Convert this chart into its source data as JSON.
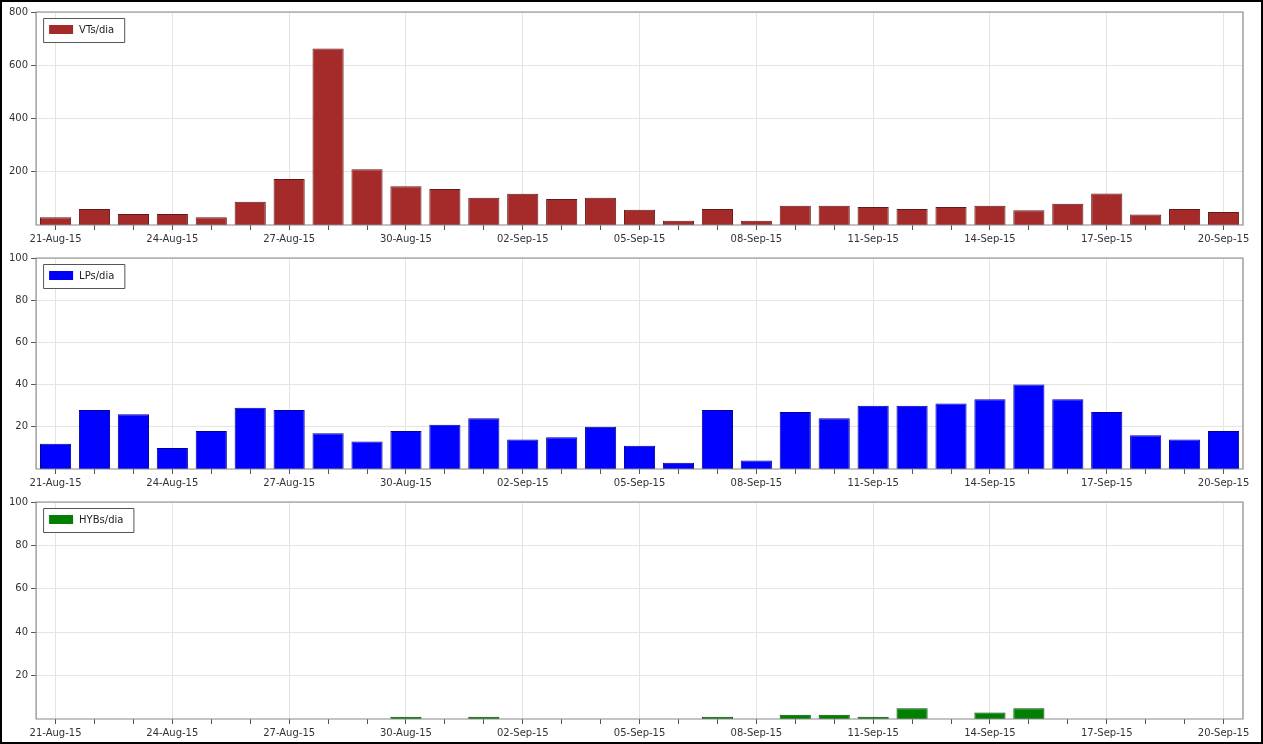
{
  "chart_data": [
    {
      "type": "bar",
      "categories": [
        "21-Aug-15",
        null,
        null,
        "24-Aug-15",
        null,
        null,
        "27-Aug-15",
        null,
        null,
        "30-Aug-15",
        null,
        null,
        "02-Sep-15",
        null,
        null,
        "05-Sep-15",
        null,
        null,
        "08-Sep-15",
        null,
        null,
        "11-Sep-15",
        null,
        null,
        "14-Sep-15",
        null,
        null,
        "17-Sep-15",
        null,
        null,
        "20-Sep-15"
      ],
      "series": [
        {
          "name": "VTs/dia",
          "color": "#a52a2a",
          "values": [
            29,
            60,
            41,
            41,
            29,
            87,
            173,
            663,
            209,
            146,
            135,
            102,
            117,
            98,
            102,
            57,
            16,
            60,
            16,
            72,
            72,
            68,
            60,
            68,
            72,
            55,
            80,
            118,
            39,
            60,
            49
          ]
        }
      ],
      "ylim": [
        0,
        800
      ],
      "yticks": [
        200,
        400,
        600,
        800
      ],
      "grid": true,
      "legend": "top left"
    },
    {
      "type": "bar",
      "categories": [
        "21-Aug-15",
        null,
        null,
        "24-Aug-15",
        null,
        null,
        "27-Aug-15",
        null,
        null,
        "30-Aug-15",
        null,
        null,
        "02-Sep-15",
        null,
        null,
        "05-Sep-15",
        null,
        null,
        "08-Sep-15",
        null,
        null,
        "11-Sep-15",
        null,
        null,
        "14-Sep-15",
        null,
        null,
        "17-Sep-15",
        null,
        null,
        "20-Sep-15"
      ],
      "series": [
        {
          "name": "LPs/dia",
          "color": "#0000ff",
          "values": [
            12,
            28,
            26,
            10,
            18,
            29,
            28,
            17,
            13,
            18,
            21,
            24,
            14,
            15,
            20,
            11,
            3,
            28,
            4,
            27,
            24,
            30,
            30,
            31,
            33,
            40,
            33,
            27,
            16,
            14,
            18
          ]
        }
      ],
      "ylim": [
        0,
        100
      ],
      "yticks": [
        20,
        40,
        60,
        80,
        100
      ],
      "grid": true,
      "legend": "top left"
    },
    {
      "type": "bar",
      "categories": [
        "21-Aug-15",
        null,
        null,
        "24-Aug-15",
        null,
        null,
        "27-Aug-15",
        null,
        null,
        "30-Aug-15",
        null,
        null,
        "02-Sep-15",
        null,
        null,
        "05-Sep-15",
        null,
        null,
        "08-Sep-15",
        null,
        null,
        "11-Sep-15",
        null,
        null,
        "14-Sep-15",
        null,
        null,
        "17-Sep-15",
        null,
        null,
        "20-Sep-15"
      ],
      "series": [
        {
          "name": "HYBs/dia",
          "color": "#007f00",
          "values": [
            0,
            0,
            0,
            0,
            0,
            0,
            0,
            0,
            0,
            1,
            0,
            1,
            0,
            0,
            0,
            0,
            0,
            1,
            0,
            2,
            2,
            1,
            5,
            0,
            3,
            5,
            0,
            0,
            0,
            0,
            0
          ]
        }
      ],
      "ylim": [
        0,
        100
      ],
      "yticks": [
        20,
        40,
        60,
        80,
        100
      ],
      "grid": true,
      "legend": "top left"
    }
  ]
}
